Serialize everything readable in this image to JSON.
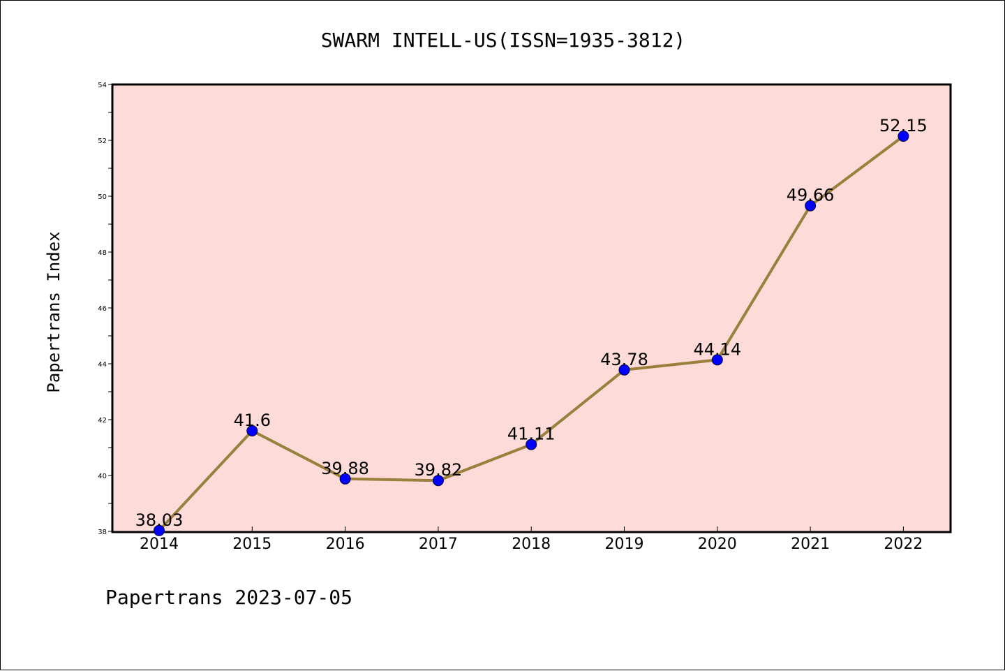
{
  "chart_data": {
    "type": "line",
    "title": "SWARM INTELL-US(ISSN=1935-3812)",
    "ylabel": "Papertrans Index",
    "xlabel": "",
    "x": [
      "2014",
      "2015",
      "2016",
      "2017",
      "2018",
      "2019",
      "2020",
      "2021",
      "2022"
    ],
    "series": [
      {
        "values": [
          38.03,
          41.6,
          39.88,
          39.82,
          41.11,
          43.78,
          44.14,
          49.66,
          52.15
        ],
        "labels": [
          "38.03",
          "41.6",
          "39.88",
          "39.82",
          "41.11",
          "43.78",
          "44.14",
          "49.66",
          "52.15"
        ]
      }
    ],
    "ylim": [
      38,
      54
    ],
    "yticks": [
      38,
      40,
      42,
      44,
      46,
      48,
      50,
      52,
      54
    ],
    "ytick_labels": [
      "38",
      "40",
      "42",
      "44",
      "46",
      "48",
      "50",
      "52",
      "54"
    ],
    "grid": false,
    "colors": {
      "plot_background": "#fddbd8",
      "line": "#9b7f3c",
      "marker": "#0000ff"
    }
  },
  "footer": "Papertrans 2023-07-05"
}
